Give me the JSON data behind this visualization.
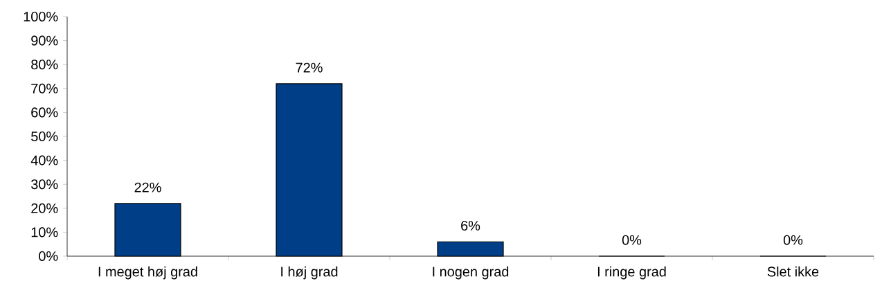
{
  "chart_data": {
    "type": "bar",
    "categories": [
      "I meget høj grad",
      "I høj grad",
      "I nogen grad",
      "I ringe grad",
      "Slet ikke"
    ],
    "values": [
      22,
      72,
      6,
      0,
      0
    ],
    "value_labels": [
      "22%",
      "72%",
      "6%",
      "0%",
      "0%"
    ],
    "color": "#003f87",
    "ylim": [
      0,
      100
    ],
    "yticks": [
      {
        "value": 0,
        "label": "0%"
      },
      {
        "value": 10,
        "label": "10%"
      },
      {
        "value": 20,
        "label": "20%"
      },
      {
        "value": 30,
        "label": "30%"
      },
      {
        "value": 40,
        "label": "40%"
      },
      {
        "value": 50,
        "label": "50%"
      },
      {
        "value": 60,
        "label": "60%"
      },
      {
        "value": 70,
        "label": "70%"
      },
      {
        "value": 80,
        "label": "80%"
      },
      {
        "value": 90,
        "label": "90%"
      },
      {
        "value": 100,
        "label": "100%"
      }
    ],
    "grid": false
  }
}
